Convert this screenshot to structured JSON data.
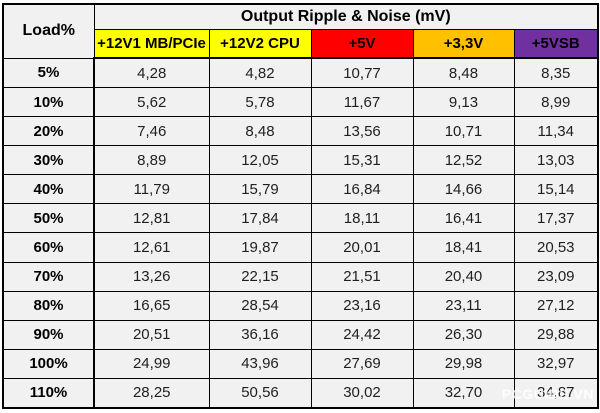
{
  "table": {
    "corner_label": "Load%",
    "group_header": "Output Ripple & Noise (mV)",
    "columns": [
      {
        "id": "12v1-mb-pcie",
        "label": "+12V1 MB/PCIe",
        "color": "#FFFF00",
        "text_color": "#000000"
      },
      {
        "id": "12v2-cpu",
        "label": "+12V2 CPU",
        "color": "#FFFF00",
        "text_color": "#000000"
      },
      {
        "id": "5v",
        "label": "+5V",
        "color": "#FF0000",
        "text_color": "#000000"
      },
      {
        "id": "3v3",
        "label": "+3,3V",
        "color": "#FFC000",
        "text_color": "#000000"
      },
      {
        "id": "5vsb",
        "label": "+5VSB",
        "color": "#7030A0",
        "text_color": "#000000"
      }
    ],
    "rows": [
      {
        "load": "5%",
        "values": [
          "4,28",
          "4,82",
          "10,77",
          "8,48",
          "8,35"
        ]
      },
      {
        "load": "10%",
        "values": [
          "5,62",
          "5,78",
          "11,67",
          "9,13",
          "8,99"
        ]
      },
      {
        "load": "20%",
        "values": [
          "7,46",
          "8,48",
          "13,56",
          "10,71",
          "11,34"
        ]
      },
      {
        "load": "30%",
        "values": [
          "8,89",
          "12,05",
          "15,31",
          "12,52",
          "13,03"
        ]
      },
      {
        "load": "40%",
        "values": [
          "11,79",
          "15,79",
          "16,84",
          "14,66",
          "15,14"
        ]
      },
      {
        "load": "50%",
        "values": [
          "12,81",
          "17,84",
          "18,11",
          "16,41",
          "17,37"
        ]
      },
      {
        "load": "60%",
        "values": [
          "12,61",
          "19,87",
          "20,01",
          "18,41",
          "20,53"
        ]
      },
      {
        "load": "70%",
        "values": [
          "13,26",
          "22,15",
          "21,51",
          "20,40",
          "23,09"
        ]
      },
      {
        "load": "80%",
        "values": [
          "16,65",
          "28,54",
          "23,16",
          "23,11",
          "27,12"
        ]
      },
      {
        "load": "90%",
        "values": [
          "20,51",
          "36,16",
          "24,42",
          "26,30",
          "29,88"
        ]
      },
      {
        "load": "100%",
        "values": [
          "24,99",
          "43,96",
          "27,69",
          "29,98",
          "32,97"
        ]
      },
      {
        "load": "110%",
        "values": [
          "28,25",
          "50,56",
          "30,02",
          "32,70",
          "34,87"
        ]
      }
    ]
  },
  "watermark": "PCGUIDE.VN",
  "colors": {
    "cell_background": "#F1F1F1",
    "border": "#000000",
    "yellow_rail": "#FFFF00",
    "red_rail": "#FF0000",
    "orange_rail": "#FFC000",
    "purple_rail": "#7030A0"
  },
  "chart_data": {
    "type": "table",
    "title": "Output Ripple & Noise (mV)",
    "row_header": "Load%",
    "categories": [
      "5%",
      "10%",
      "20%",
      "30%",
      "40%",
      "50%",
      "60%",
      "70%",
      "80%",
      "90%",
      "100%",
      "110%"
    ],
    "series": [
      {
        "name": "+12V1 MB/PCIe",
        "values": [
          4.28,
          5.62,
          7.46,
          8.89,
          11.79,
          12.81,
          12.61,
          13.26,
          16.65,
          20.51,
          24.99,
          28.25
        ]
      },
      {
        "name": "+12V2 CPU",
        "values": [
          4.82,
          5.78,
          8.48,
          12.05,
          15.79,
          17.84,
          19.87,
          22.15,
          28.54,
          36.16,
          43.96,
          50.56
        ]
      },
      {
        "name": "+5V",
        "values": [
          10.77,
          11.67,
          13.56,
          15.31,
          16.84,
          18.11,
          20.01,
          21.51,
          23.16,
          24.42,
          27.69,
          30.02
        ]
      },
      {
        "name": "+3,3V",
        "values": [
          8.48,
          9.13,
          10.71,
          12.52,
          14.66,
          16.41,
          18.41,
          20.4,
          23.11,
          26.3,
          29.98,
          32.7
        ]
      },
      {
        "name": "+5VSB",
        "values": [
          8.35,
          8.99,
          11.34,
          13.03,
          15.14,
          17.37,
          20.53,
          23.09,
          27.12,
          29.88,
          32.97,
          34.87
        ]
      }
    ],
    "value_unit": "mV",
    "decimal_separator": ","
  }
}
